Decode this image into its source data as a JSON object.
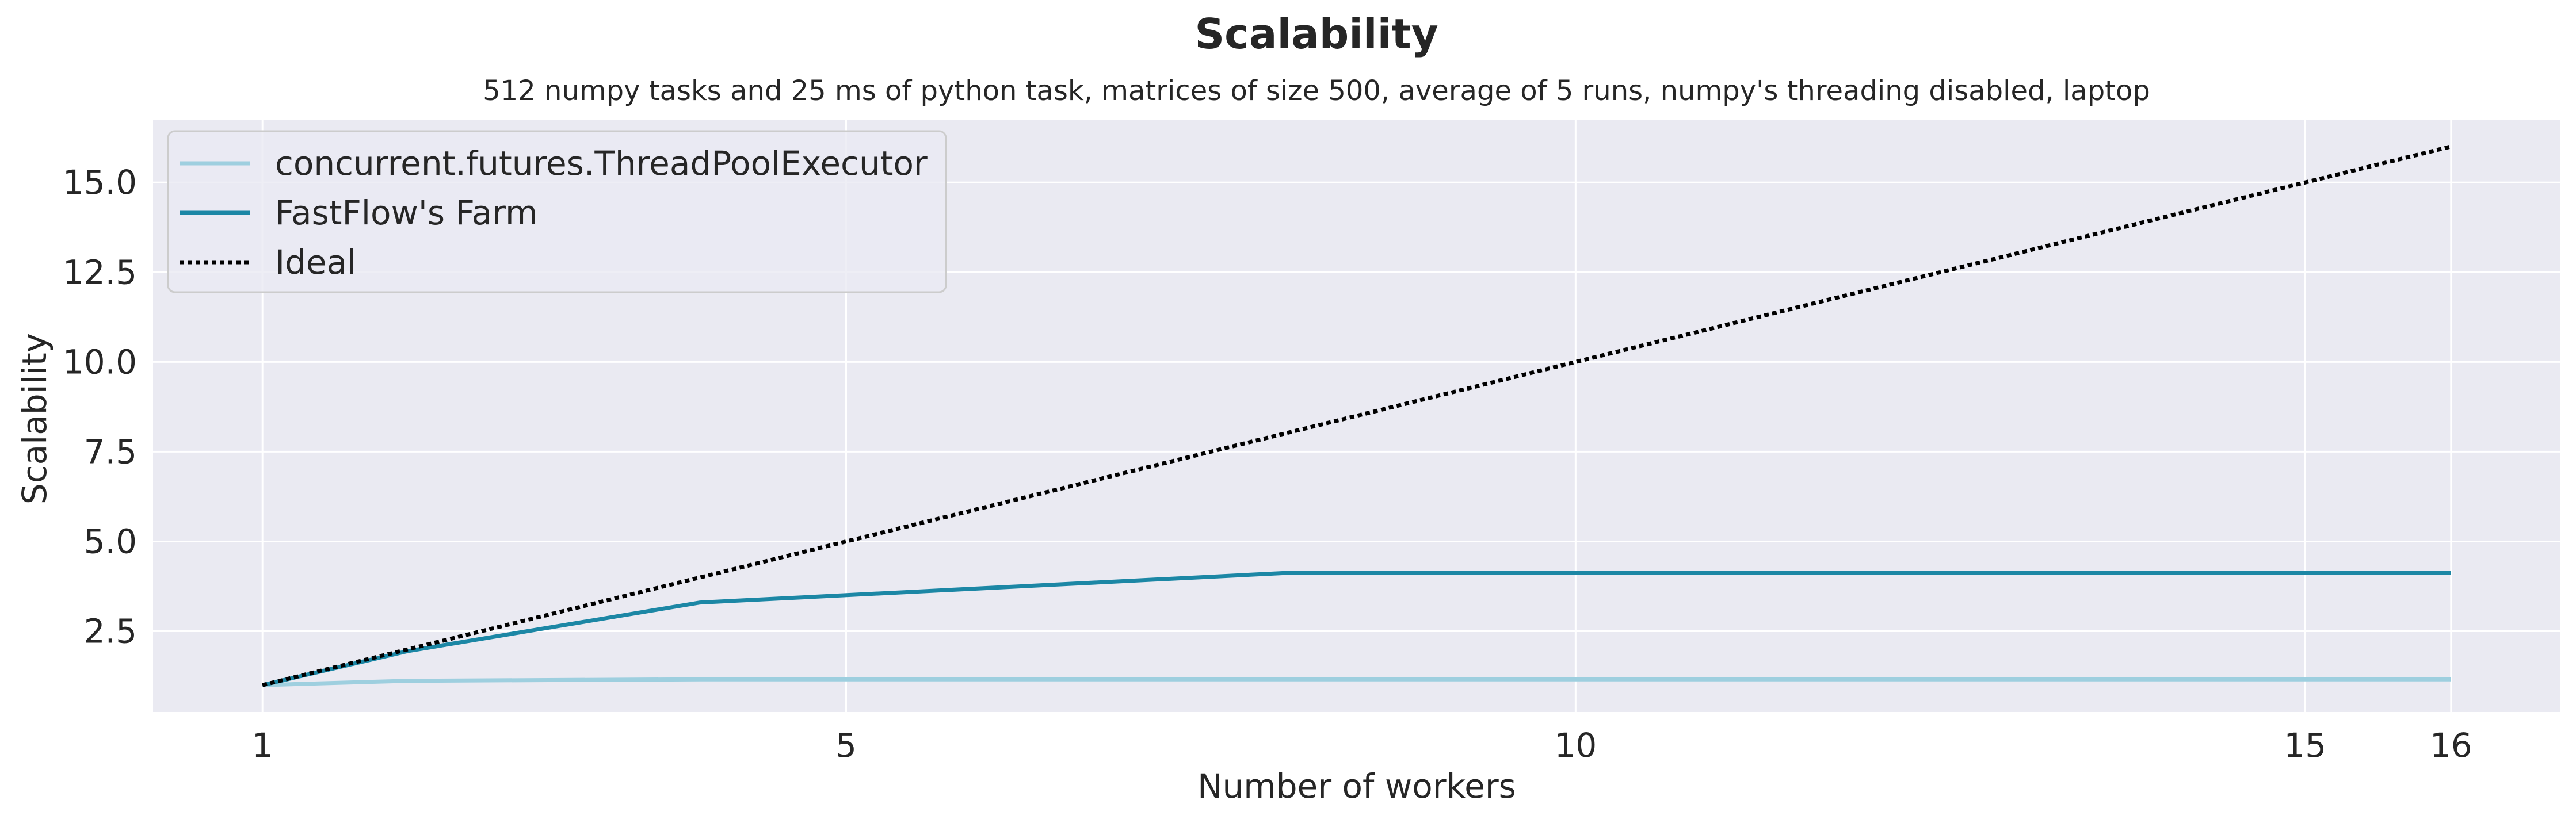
{
  "chart_data": {
    "type": "line",
    "title": "Scalability",
    "subtitle": "512 numpy tasks and 25 ms of python task, matrices of size 500, average of 5 runs, numpy's threading disabled, laptop",
    "xlabel": "Number of workers",
    "ylabel": "Scalability",
    "xlim": [
      0.25,
      16.75
    ],
    "ylim": [
      0.25,
      16.75
    ],
    "x_ticks": [
      1,
      5,
      10,
      15,
      16
    ],
    "x_tick_labels": [
      "1",
      "5",
      "10",
      "15",
      "16"
    ],
    "y_ticks": [
      2.5,
      5.0,
      7.5,
      10.0,
      12.5,
      15.0
    ],
    "y_tick_labels": [
      "2.5",
      "5.0",
      "7.5",
      "10.0",
      "12.5",
      "15.0"
    ],
    "grid": true,
    "legend_position": "upper-left",
    "series": [
      {
        "name": "concurrent.futures.ThreadPoolExecutor",
        "color": "#9ecfdf",
        "style": "solid",
        "x": [
          1,
          2,
          4,
          8,
          16
        ],
        "y": [
          1.0,
          1.12,
          1.16,
          1.16,
          1.16
        ]
      },
      {
        "name": "FastFlow's Farm",
        "color": "#1c87a5",
        "style": "solid",
        "x": [
          1,
          2,
          4,
          8,
          16
        ],
        "y": [
          1.0,
          1.95,
          3.3,
          4.12,
          4.12
        ]
      },
      {
        "name": "Ideal",
        "color": "#000000",
        "style": "dotted",
        "x": [
          1,
          16
        ],
        "y": [
          1.0,
          16.0
        ]
      }
    ]
  }
}
